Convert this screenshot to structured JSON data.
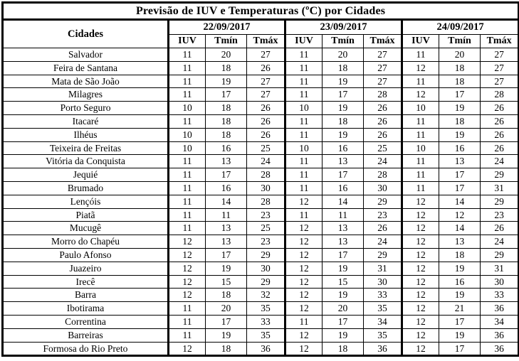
{
  "title": "Previsão de IUV e Temperaturas (ºC) por Cidades",
  "headers": {
    "city": "Cidades",
    "dates": [
      "22/09/2017",
      "23/09/2017",
      "24/09/2017"
    ],
    "sub": [
      "IUV",
      "Tmín",
      "Tmáx"
    ]
  },
  "chart_data": {
    "type": "table",
    "title": "Previsão de IUV e Temperaturas (ºC) por Cidades",
    "column_groups": [
      "22/09/2017",
      "23/09/2017",
      "24/09/2017"
    ],
    "sub_columns": [
      "IUV",
      "Tmín",
      "Tmáx"
    ]
  },
  "rows": [
    {
      "city": "Salvador",
      "values": [
        [
          11,
          20,
          27
        ],
        [
          11,
          20,
          27
        ],
        [
          11,
          20,
          27
        ]
      ]
    },
    {
      "city": "Feira de Santana",
      "values": [
        [
          11,
          18,
          26
        ],
        [
          11,
          18,
          27
        ],
        [
          12,
          18,
          27
        ]
      ]
    },
    {
      "city": "Mata de São João",
      "values": [
        [
          11,
          19,
          27
        ],
        [
          11,
          19,
          27
        ],
        [
          11,
          18,
          27
        ]
      ]
    },
    {
      "city": "Milagres",
      "values": [
        [
          11,
          17,
          27
        ],
        [
          11,
          17,
          28
        ],
        [
          12,
          17,
          28
        ]
      ]
    },
    {
      "city": "Porto Seguro",
      "values": [
        [
          10,
          18,
          26
        ],
        [
          10,
          19,
          26
        ],
        [
          10,
          19,
          26
        ]
      ]
    },
    {
      "city": "Itacaré",
      "values": [
        [
          11,
          18,
          26
        ],
        [
          11,
          18,
          26
        ],
        [
          11,
          18,
          26
        ]
      ]
    },
    {
      "city": "Ilhéus",
      "values": [
        [
          10,
          18,
          26
        ],
        [
          11,
          19,
          26
        ],
        [
          11,
          19,
          26
        ]
      ]
    },
    {
      "city": "Teixeira de Freitas",
      "values": [
        [
          10,
          16,
          25
        ],
        [
          10,
          16,
          25
        ],
        [
          10,
          16,
          26
        ]
      ]
    },
    {
      "city": "Vitória da Conquista",
      "values": [
        [
          11,
          13,
          24
        ],
        [
          11,
          13,
          24
        ],
        [
          11,
          13,
          24
        ]
      ]
    },
    {
      "city": "Jequié",
      "values": [
        [
          11,
          17,
          28
        ],
        [
          11,
          17,
          28
        ],
        [
          11,
          17,
          29
        ]
      ]
    },
    {
      "city": "Brumado",
      "values": [
        [
          11,
          16,
          30
        ],
        [
          11,
          16,
          30
        ],
        [
          11,
          17,
          31
        ]
      ]
    },
    {
      "city": "Lençóis",
      "values": [
        [
          11,
          14,
          28
        ],
        [
          12,
          14,
          29
        ],
        [
          12,
          14,
          29
        ]
      ]
    },
    {
      "city": "Piatã",
      "values": [
        [
          11,
          11,
          23
        ],
        [
          11,
          11,
          23
        ],
        [
          12,
          12,
          23
        ]
      ]
    },
    {
      "city": "Mucugê",
      "values": [
        [
          11,
          13,
          25
        ],
        [
          12,
          13,
          26
        ],
        [
          12,
          14,
          26
        ]
      ]
    },
    {
      "city": "Morro do Chapéu",
      "values": [
        [
          12,
          13,
          23
        ],
        [
          12,
          13,
          24
        ],
        [
          12,
          13,
          24
        ]
      ]
    },
    {
      "city": "Paulo Afonso",
      "values": [
        [
          12,
          17,
          29
        ],
        [
          12,
          17,
          29
        ],
        [
          12,
          18,
          29
        ]
      ]
    },
    {
      "city": "Juazeiro",
      "values": [
        [
          12,
          19,
          30
        ],
        [
          12,
          19,
          31
        ],
        [
          12,
          19,
          31
        ]
      ]
    },
    {
      "city": "Irecê",
      "values": [
        [
          12,
          15,
          29
        ],
        [
          12,
          15,
          30
        ],
        [
          12,
          16,
          30
        ]
      ]
    },
    {
      "city": "Barra",
      "values": [
        [
          12,
          18,
          32
        ],
        [
          12,
          19,
          33
        ],
        [
          12,
          19,
          33
        ]
      ]
    },
    {
      "city": "Ibotirama",
      "values": [
        [
          11,
          20,
          35
        ],
        [
          12,
          20,
          35
        ],
        [
          12,
          21,
          36
        ]
      ]
    },
    {
      "city": "Correntina",
      "values": [
        [
          11,
          17,
          33
        ],
        [
          11,
          17,
          34
        ],
        [
          12,
          17,
          34
        ]
      ]
    },
    {
      "city": "Barreiras",
      "values": [
        [
          11,
          19,
          35
        ],
        [
          12,
          19,
          35
        ],
        [
          12,
          19,
          36
        ]
      ]
    },
    {
      "city": "Formosa do Rio Preto",
      "values": [
        [
          12,
          18,
          36
        ],
        [
          12,
          18,
          36
        ],
        [
          12,
          17,
          36
        ]
      ]
    }
  ]
}
